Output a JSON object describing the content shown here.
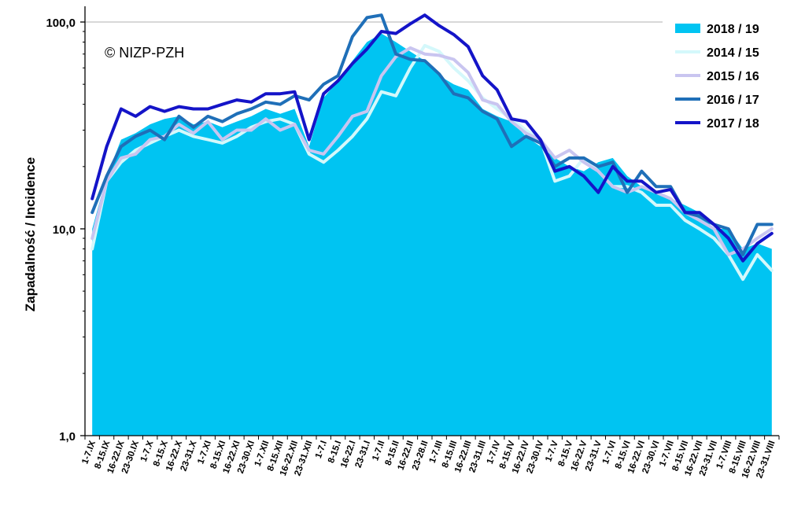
{
  "chart_data": {
    "type": "area",
    "title": "",
    "ylabel": "Zapadalność  /  Incidence",
    "xlabel": "",
    "yscale": "log",
    "ylim": [
      1,
      150
    ],
    "yticks": [
      1,
      10,
      100
    ],
    "ytick_labels": [
      "1,0",
      "10,0",
      "100,0"
    ],
    "grid": "horizontal at 100",
    "legend_position": "top-right",
    "copyright": "© NIZP-PZH",
    "categories": [
      "1-7.IX",
      "8-15.IX",
      "16-22.IX",
      "23-30.IX",
      "1-7.X",
      "8-15.X",
      "16-22.X",
      "23-31.X",
      "1-7.XI",
      "8-15.XI",
      "16-22.XI",
      "23-30.XI",
      "1-7.XII",
      "8-15.XII",
      "16-22.XII",
      "23-31.XII",
      "1-7.I",
      "8-15.I",
      "16-22.I",
      "23-31.I",
      "1-7.II",
      "8-15.II",
      "16-22.II",
      "23-28.II",
      "1-7.III",
      "8-15.III",
      "16-22.III",
      "23-31.III",
      "1-7.IV",
      "8-15.IV",
      "16-22.IV",
      "23-30.IV",
      "1-7.V",
      "8-15.V",
      "16-22.V",
      "23-31.V",
      "1-7.VI",
      "8-15.VI",
      "16-22.VI",
      "23-30.VI",
      "1-7.VII",
      "8-15.VII",
      "16-22.VII",
      "23-31.VII",
      "1-7.VIII",
      "8-15.VIII",
      "16-22.VIII",
      "23-31.VIII"
    ],
    "series": [
      {
        "name": "2018 / 19",
        "kind": "area",
        "color": "#00c4f2",
        "values": [
          10,
          18,
          27,
          29,
          32,
          34,
          35,
          32,
          33,
          31,
          33,
          35,
          38,
          36,
          38,
          25,
          43,
          52,
          65,
          80,
          88,
          80,
          72,
          65,
          55,
          50,
          47,
          38,
          35,
          33,
          28,
          25,
          22,
          20,
          19,
          21,
          22,
          18,
          16,
          15,
          14,
          13,
          12,
          10,
          10,
          8,
          8.5,
          8
        ]
      },
      {
        "name": "2014 / 15",
        "kind": "line",
        "color": "#d4f8fb",
        "values": [
          8,
          17,
          21,
          24,
          26,
          28,
          30,
          28,
          27,
          26,
          28,
          31,
          33,
          34,
          32,
          23,
          21,
          24,
          28,
          34,
          46,
          44,
          60,
          77,
          72,
          60,
          52,
          43,
          38,
          34,
          30,
          27,
          17,
          18,
          22,
          19,
          16,
          16,
          15,
          13,
          13,
          11,
          10,
          9,
          7.5,
          5.7,
          7.5,
          6.3
        ]
      },
      {
        "name": "2015 / 16",
        "kind": "line",
        "color": "#c9c5f0",
        "values": [
          9,
          17,
          22,
          23,
          27,
          28,
          32,
          29,
          33,
          27,
          30,
          30,
          34,
          30,
          32,
          24,
          23,
          28,
          35,
          37,
          55,
          68,
          75,
          70,
          69,
          66,
          57,
          42,
          40,
          33,
          29,
          27,
          22,
          24,
          21,
          19,
          16,
          15,
          16,
          15,
          14,
          12,
          11,
          10,
          7.5,
          8,
          9,
          10
        ]
      },
      {
        "name": "2016 / 17",
        "kind": "line",
        "color": "#1f6fb8",
        "values": [
          12,
          18,
          25,
          28,
          30,
          27,
          35,
          31,
          35,
          33,
          36,
          38,
          41,
          40,
          44,
          42,
          50,
          55,
          85,
          105,
          108,
          70,
          66,
          65,
          56,
          45,
          43,
          37,
          34,
          25,
          28,
          26,
          20,
          22,
          22,
          20,
          21,
          15,
          19,
          16,
          16,
          12,
          11.5,
          10.5,
          10,
          7.5,
          10.5,
          10.5
        ]
      },
      {
        "name": "2017 / 18",
        "kind": "line",
        "color": "#1414c8",
        "values": [
          14,
          25,
          38,
          35,
          39,
          37,
          39,
          38,
          38,
          40,
          42,
          41,
          45,
          45,
          46,
          27,
          45,
          52,
          63,
          74,
          90,
          88,
          98,
          108,
          96,
          87,
          76,
          55,
          47,
          34,
          33,
          27,
          19,
          20,
          18,
          15,
          20,
          17,
          17,
          15,
          15.5,
          12,
          12,
          10.5,
          9,
          7,
          8.5,
          9.5
        ]
      }
    ]
  }
}
